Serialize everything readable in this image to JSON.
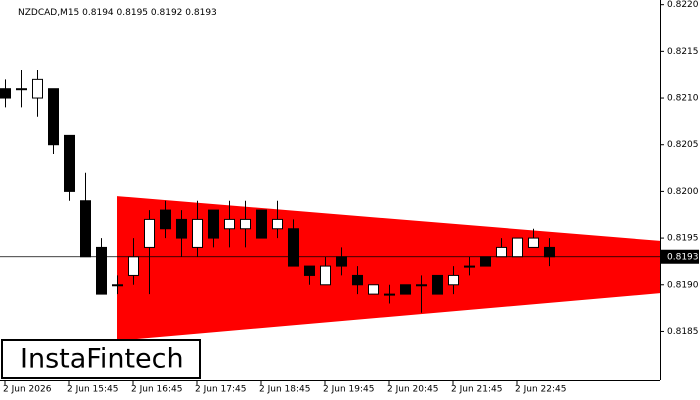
{
  "chart_data": {
    "type": "candlestick",
    "title": "NZDCAD,M15",
    "ohlc": [
      0.8194,
      0.8195,
      0.8192,
      0.8193
    ],
    "last_price": 0.8193,
    "watermark": "InstaFintech",
    "categories": [
      "2 Jun 2026",
      null,
      null,
      null,
      "2 Jun 15:45",
      null,
      null,
      null,
      "2 Jun 16:45",
      null,
      null,
      null,
      "2 Jun 17:45",
      null,
      null,
      null,
      "2 Jun 18:45",
      null,
      null,
      null,
      "2 Jun 19:45",
      null,
      null,
      null,
      "2 Jun 20:45",
      null,
      null,
      null,
      "2 Jun 21:45",
      null,
      null,
      null,
      "2 Jun 22:45",
      null,
      null
    ],
    "open": [
      0.8211,
      0.8211,
      0.821,
      0.8211,
      0.8206,
      0.8199,
      0.8194,
      0.819,
      0.8191,
      0.8194,
      0.8198,
      0.8197,
      0.8194,
      0.8198,
      0.8196,
      0.8196,
      0.8198,
      0.8196,
      0.8196,
      0.8192,
      0.819,
      0.8193,
      0.8191,
      0.8189,
      0.8189,
      0.819,
      0.819,
      0.8191,
      0.819,
      0.8192,
      0.8193,
      0.8193,
      0.8193,
      0.8194,
      0.8194
    ],
    "high": [
      0.8212,
      0.8213,
      0.8213,
      0.8211,
      0.8206,
      0.8202,
      0.8195,
      0.8191,
      0.8195,
      0.8198,
      0.8199,
      0.8198,
      0.8199,
      0.8198,
      0.8199,
      0.8199,
      0.8198,
      0.8199,
      0.8197,
      0.8192,
      0.8193,
      0.8194,
      0.8192,
      0.819,
      0.819,
      0.819,
      0.8191,
      0.8191,
      0.8192,
      0.8193,
      0.8193,
      0.8195,
      0.8195,
      0.8196,
      0.8195
    ],
    "low": [
      0.8209,
      0.8209,
      0.8208,
      0.8204,
      0.8199,
      0.8193,
      0.8189,
      0.8189,
      0.819,
      0.8189,
      0.8195,
      0.8193,
      0.8193,
      0.8194,
      0.8194,
      0.8194,
      0.8195,
      0.8195,
      0.8192,
      0.819,
      0.819,
      0.8191,
      0.8189,
      0.8189,
      0.8188,
      0.8189,
      0.8187,
      0.8189,
      0.8189,
      0.8191,
      0.8192,
      0.8193,
      0.8193,
      0.8194,
      0.8192
    ],
    "close": [
      0.821,
      0.8211,
      0.8212,
      0.8205,
      0.82,
      0.8193,
      0.8189,
      0.819,
      0.8193,
      0.8197,
      0.8196,
      0.8195,
      0.8197,
      0.8195,
      0.8197,
      0.8197,
      0.8195,
      0.8197,
      0.8192,
      0.8191,
      0.8192,
      0.8192,
      0.819,
      0.819,
      0.8189,
      0.8189,
      0.819,
      0.8189,
      0.8191,
      0.8192,
      0.8192,
      0.8194,
      0.8195,
      0.8195,
      0.8193
    ],
    "up_color": "#ffffff",
    "down_color": "#000000",
    "pattern": {
      "color": "#ff0000",
      "upper": [
        0.81995,
        0.81947
      ],
      "lower": [
        0.8184,
        0.81891
      ]
    },
    "ylim": [
      0.81798,
      0.82205
    ],
    "yticks": [
      0.8185,
      {
        "value": 0.819,
        "label": "0.8190"
      },
      0.8195,
      {
        "value": 0.82,
        "label": "0.8200"
      },
      0.8205,
      {
        "value": 0.821,
        "label": "0.8210"
      },
      0.8215,
      {
        "value": 0.822,
        "label": "0.8220"
      }
    ]
  }
}
